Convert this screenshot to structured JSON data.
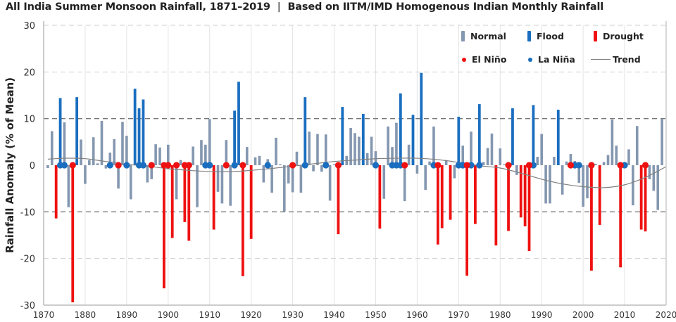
{
  "chart_data": {
    "type": "bar",
    "title": "All India Summer Monsoon Rainfall, 1871–2019",
    "subtitle": "Based on IITM/IMD Homogenous Indian Monthly Rainfall",
    "ylabel": "Rainfall Anomaly (% of Mean)",
    "xlabel": "",
    "xlim": [
      1870,
      2020
    ],
    "ylim": [
      -30,
      30
    ],
    "x_ticks": [
      "1870",
      "1880",
      "1890",
      "1900",
      "1910",
      "1920",
      "1930",
      "1940",
      "1950",
      "1960",
      "1970",
      "1980",
      "1990",
      "2000",
      "2010",
      "2020"
    ],
    "y_ticks": [
      "30",
      "20",
      "10",
      "0",
      "-10",
      "-20",
      "-30"
    ],
    "grid": "dashed horizontal, light vertical per decade",
    "legend_placement": "top-right",
    "thresholds": {
      "flood": 10,
      "drought": -10
    },
    "years": {
      "start": 1871,
      "end": 2019
    },
    "values": [
      -0.6,
      7.3,
      -11.4,
      14.4,
      9.2,
      -9.0,
      -29.4,
      14.6,
      5.5,
      -4.0,
      1.1,
      6.0,
      0.4,
      9.5,
      -0.7,
      2.7,
      5.6,
      -5.0,
      9.3,
      6.3,
      -7.3,
      16.4,
      12.2,
      14.1,
      -3.7,
      -3.0,
      4.5,
      3.8,
      -26.4,
      4.4,
      -15.6,
      -7.3,
      1.1,
      -12.2,
      -16.2,
      4.0,
      -9.0,
      5.4,
      4.4,
      9.9,
      -13.8,
      -5.7,
      -8.2,
      5.4,
      -8.7,
      11.7,
      17.9,
      -23.8,
      3.9,
      -15.8,
      1.7,
      2.0,
      -3.7,
      1.3,
      -5.9,
      5.9,
      0.2,
      -9.9,
      -3.9,
      -5.8,
      2.9,
      -5.9,
      14.6,
      7.2,
      -1.3,
      6.7,
      -1.4,
      6.6,
      -7.6,
      0.2,
      -14.8,
      12.5,
      2.0,
      8.0,
      6.9,
      6.1,
      11.0,
      2.6,
      6.1,
      3.0,
      -13.6,
      -7.2,
      8.3,
      3.9,
      9.1,
      15.4,
      -7.7,
      4.4,
      10.8,
      -1.8,
      19.8,
      -5.3,
      0.8,
      8.3,
      -17.0,
      -13.5,
      1.1,
      -11.7,
      -2.8,
      10.4,
      4.2,
      -23.7,
      7.2,
      -12.6,
      13.1,
      0.7,
      3.7,
      6.8,
      -17.2,
      3.6,
      0.2,
      -14.1,
      12.2,
      -2.1,
      -11.2,
      -13.1,
      -18.4,
      12.9,
      1.8,
      6.7,
      -8.2,
      -8.2,
      1.8,
      11.9,
      -6.3,
      0.8,
      2.4,
      0.9,
      -3.8,
      -8.9,
      -7.1,
      -22.6,
      0.3,
      -12.8,
      0.7,
      2.2,
      9.8,
      4.2,
      -21.9,
      0.2,
      3.4,
      -8.6,
      8.4,
      -13.8,
      -14.2,
      -3.0,
      -5.5,
      -9.6,
      9.9
    ],
    "el_nino_years": [
      1877,
      1888,
      1896,
      1899,
      1900,
      1902,
      1904,
      1905,
      1914,
      1918,
      1930,
      1941,
      1957,
      1965,
      1972,
      1982,
      1987,
      1997,
      2002,
      2009,
      2015
    ],
    "la_nina_years": [
      1874,
      1875,
      1886,
      1890,
      1893,
      1894,
      1909,
      1910,
      1916,
      1924,
      1933,
      1938,
      1950,
      1954,
      1955,
      1956,
      1964,
      1970,
      1971,
      1973,
      1975,
      1988,
      1998,
      1999,
      2010
    ],
    "trend": [
      [
        1871,
        1.3
      ],
      [
        1875,
        1.5
      ],
      [
        1880,
        1.4
      ],
      [
        1885,
        0.8
      ],
      [
        1890,
        0.2
      ],
      [
        1895,
        -0.2
      ],
      [
        1900,
        -0.75
      ],
      [
        1905,
        -1.1
      ],
      [
        1910,
        -1.35
      ],
      [
        1915,
        -1.4
      ],
      [
        1920,
        -1.1
      ],
      [
        1925,
        -0.7
      ],
      [
        1930,
        -0.2
      ],
      [
        1935,
        0.3
      ],
      [
        1940,
        0.8
      ],
      [
        1945,
        1.1
      ],
      [
        1950,
        1.4
      ],
      [
        1955,
        1.5
      ],
      [
        1960,
        1.5
      ],
      [
        1965,
        1.2
      ],
      [
        1970,
        0.6
      ],
      [
        1975,
        -0.1
      ],
      [
        1980,
        -0.6
      ],
      [
        1985,
        -1.7
      ],
      [
        1990,
        -3.0
      ],
      [
        1995,
        -4.0
      ],
      [
        2000,
        -4.6
      ],
      [
        2005,
        -4.8
      ],
      [
        2010,
        -4.2
      ],
      [
        2015,
        -2.6
      ],
      [
        2020,
        -0.3
      ]
    ],
    "legend": {
      "normal": "Normal",
      "flood": "Flood",
      "drought": "Drought",
      "el_nino": "El Niño",
      "la_nina": "La Niña",
      "trend": "Trend"
    },
    "colors": {
      "normal": "#8497b0",
      "flood": "#1a6ebf",
      "drought": "#ee1111",
      "el_nino": "#ee1111",
      "la_nina": "#1a6ebf",
      "trend": "#808080"
    }
  },
  "header": {
    "separator": "|"
  }
}
